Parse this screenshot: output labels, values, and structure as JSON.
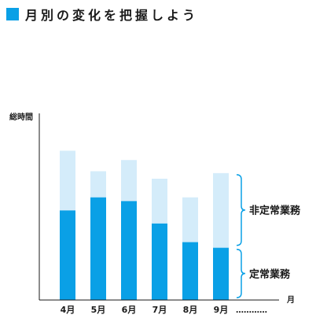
{
  "page_title": "月別の変化を把握しよう",
  "colors": {
    "accent": "#0aa0e6",
    "light": "#d4ecfa",
    "axis": "#1a1a1a",
    "bracket": "#0aa0e6"
  },
  "chart_data": {
    "type": "bar",
    "stacked": true,
    "title": "",
    "ylabel": "総時間",
    "xlabel": "月",
    "categories": [
      "4月",
      "5月",
      "6月",
      "7月",
      "8月",
      "9月"
    ],
    "trailing_label": "…………",
    "ylim": [
      0,
      100
    ],
    "series": [
      {
        "name": "定常業務",
        "values": [
          48,
          55,
          53,
          41,
          31,
          28
        ]
      },
      {
        "name": "非定常業務",
        "values": [
          32,
          14,
          22,
          24,
          24,
          40
        ]
      }
    ],
    "grid": false,
    "legend": "right-brackets"
  }
}
